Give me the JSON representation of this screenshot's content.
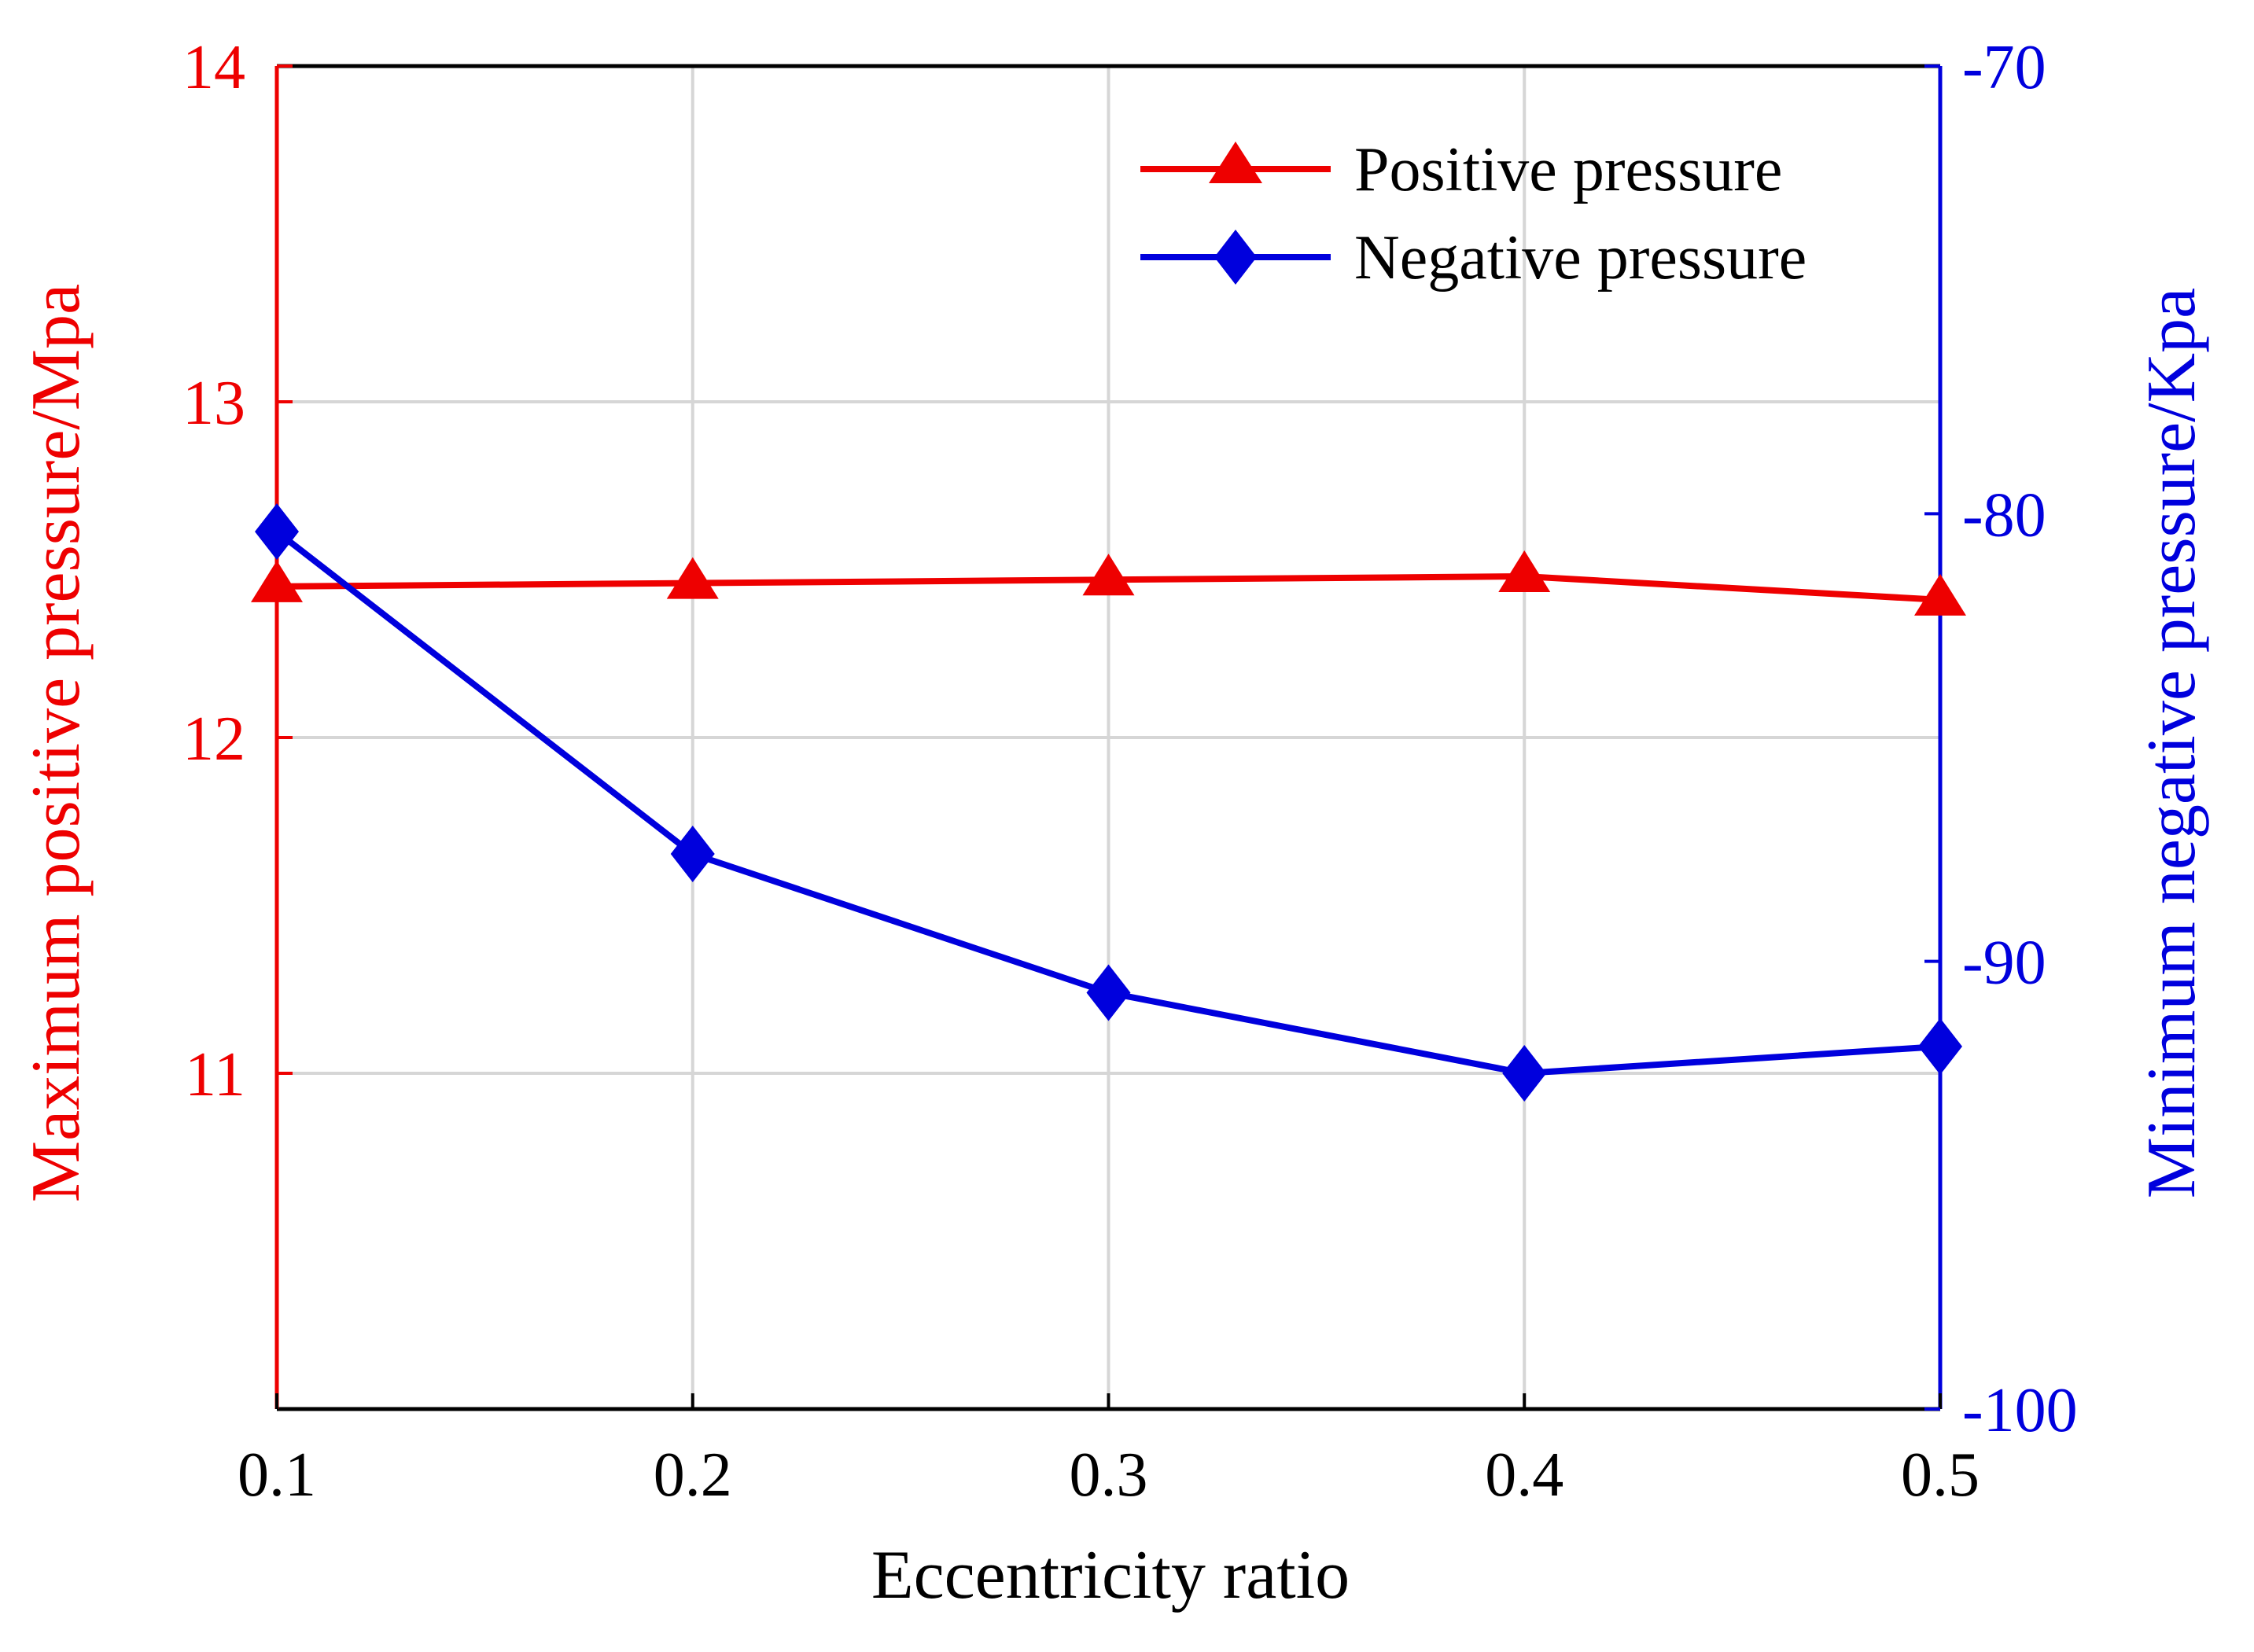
{
  "chart_data": {
    "type": "line",
    "title": "",
    "xlabel": "Eccentricity ratio",
    "ylabel_left": "Maximum positive pressure/Mpa",
    "ylabel_right": "Minimum negative pressure/Kpa",
    "x": [
      0.1,
      0.2,
      0.3,
      0.4,
      0.5
    ],
    "x_tick_labels": [
      "0.1",
      "0.2",
      "0.3",
      "0.4",
      "0.5"
    ],
    "xlim": [
      0.1,
      0.5
    ],
    "ylim_left": [
      10,
      14
    ],
    "ylim_right": [
      -100,
      -70
    ],
    "y_left_ticks": [
      11,
      12,
      13,
      14
    ],
    "y_left_tick_labels": [
      "11",
      "12",
      "13",
      "14"
    ],
    "y_right_ticks": [
      -100,
      -90,
      -80,
      -70
    ],
    "y_right_tick_labels": [
      "-100",
      "-90",
      "-80",
      "-70"
    ],
    "grid": true,
    "legend_position": "top-right",
    "series": [
      {
        "name": "Positive pressure",
        "axis": "left",
        "marker": "triangle",
        "color": "#ee0000",
        "values": [
          12.45,
          12.46,
          12.47,
          12.48,
          12.41
        ]
      },
      {
        "name": "Negative pressure",
        "axis": "right",
        "marker": "diamond",
        "color": "#0000dd",
        "values": [
          -80.4,
          -87.6,
          -90.7,
          -92.5,
          -91.9
        ]
      }
    ]
  }
}
